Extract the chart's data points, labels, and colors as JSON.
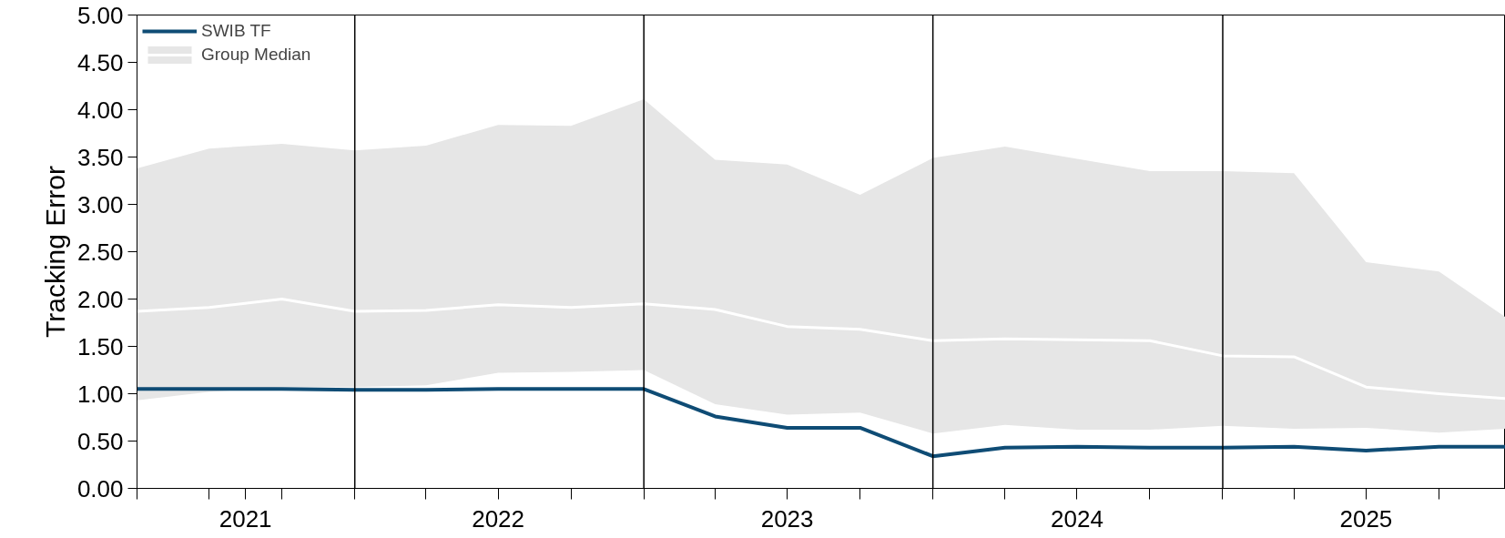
{
  "chart_data": {
    "type": "line",
    "ylabel": "Tracking Error",
    "x": [
      "2021-03-31",
      "2021-06-30",
      "2021-09-30",
      "2021-12-31",
      "2022-03-31",
      "2022-06-30",
      "2022-09-30",
      "2022-12-31",
      "2023-03-31",
      "2023-06-30",
      "2023-09-30",
      "2023-12-31",
      "2024-03-31",
      "2024-06-30",
      "2024-09-30",
      "2024-12-31",
      "2025-03-31",
      "2025-06-30",
      "2025-09-30",
      "2025-12-23"
    ],
    "series": [
      {
        "name": "Group Median",
        "color": "#ffffff",
        "values": [
          1.87,
          1.91,
          2.0,
          1.87,
          1.88,
          1.94,
          1.91,
          1.95,
          1.89,
          1.71,
          1.68,
          1.56,
          1.58,
          1.57,
          1.56,
          1.4,
          1.39,
          1.07,
          1.0,
          0.95
        ],
        "lower": [
          0.93,
          1.02,
          1.07,
          1.07,
          1.09,
          1.22,
          1.23,
          1.25,
          0.89,
          0.78,
          0.8,
          0.58,
          0.67,
          0.62,
          0.62,
          0.66,
          0.63,
          0.64,
          0.59,
          0.63
        ],
        "upper": [
          3.38,
          3.59,
          3.64,
          3.57,
          3.62,
          3.84,
          3.83,
          4.11,
          3.47,
          3.42,
          3.1,
          3.49,
          3.61,
          3.48,
          3.35,
          3.35,
          3.33,
          2.39,
          2.29,
          1.81
        ]
      },
      {
        "name": "SWIB TF",
        "color": "#0f4c75",
        "values": [
          1.05,
          1.05,
          1.05,
          1.04,
          1.04,
          1.05,
          1.05,
          1.05,
          0.76,
          0.64,
          0.64,
          0.34,
          0.43,
          0.44,
          0.43,
          0.43,
          0.44,
          0.4,
          0.44,
          0.44
        ]
      }
    ],
    "xlim": [
      "2021-03-31",
      "2025-12-23"
    ],
    "xticks": [
      {
        "value": "2021-03-31",
        "label": null
      },
      {
        "value": "2021-06-30",
        "label": null
      },
      {
        "value": "2021-08-15",
        "label": "2021"
      },
      {
        "value": "2021-09-30",
        "label": null
      },
      {
        "value": "2021-12-31",
        "label": null
      },
      {
        "value": "2022-03-31",
        "label": null
      },
      {
        "value": "2022-06-30",
        "label": "2022"
      },
      {
        "value": "2022-09-30",
        "label": null
      },
      {
        "value": "2022-12-31",
        "label": null
      },
      {
        "value": "2023-03-31",
        "label": null
      },
      {
        "value": "2023-06-30",
        "label": "2023"
      },
      {
        "value": "2023-09-30",
        "label": null
      },
      {
        "value": "2023-12-31",
        "label": null
      },
      {
        "value": "2024-03-31",
        "label": null
      },
      {
        "value": "2024-06-30",
        "label": "2024"
      },
      {
        "value": "2024-09-30",
        "label": null
      },
      {
        "value": "2024-12-31",
        "label": null
      },
      {
        "value": "2025-03-31",
        "label": null
      },
      {
        "value": "2025-06-30",
        "label": "2025"
      },
      {
        "value": "2025-09-30",
        "label": null
      }
    ],
    "ylim": [
      0,
      5
    ],
    "yticks": [
      {
        "value": 0,
        "label": "0.00"
      },
      {
        "value": 0.5,
        "label": "0.50"
      },
      {
        "value": 1,
        "label": "1.00"
      },
      {
        "value": 1.5,
        "label": "1.50"
      },
      {
        "value": 2,
        "label": "2.00"
      },
      {
        "value": 2.5,
        "label": "2.50"
      },
      {
        "value": 3,
        "label": "3.00"
      },
      {
        "value": 3.5,
        "label": "3.50"
      },
      {
        "value": 4,
        "label": "4.00"
      },
      {
        "value": 4.5,
        "label": "4.50"
      },
      {
        "value": 5,
        "label": "5.00"
      }
    ],
    "ref_lines": [
      {
        "axis": "x",
        "value": "2021-12-31",
        "color": "#000000"
      },
      {
        "axis": "x",
        "value": "2022-12-31",
        "color": "#000000"
      },
      {
        "axis": "x",
        "value": "2023-12-31",
        "color": "#000000"
      },
      {
        "axis": "x",
        "value": "2024-12-31",
        "color": "#000000"
      }
    ],
    "legend": "top left",
    "grid": false,
    "line_style": "solid",
    "marker": "none"
  }
}
